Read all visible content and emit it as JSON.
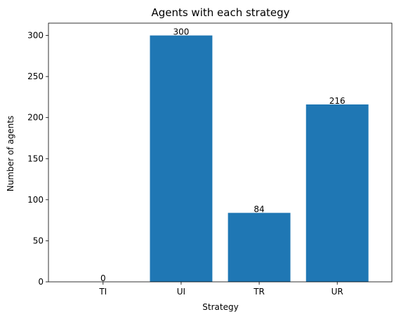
{
  "chart_data": {
    "type": "bar",
    "title": "Agents with each strategy",
    "xlabel": "Strategy",
    "ylabel": "Number of agents",
    "categories": [
      "TI",
      "UI",
      "TR",
      "UR"
    ],
    "values": [
      0,
      300,
      84,
      216
    ],
    "ylim": [
      0,
      315
    ],
    "yticks": [
      0,
      50,
      100,
      150,
      200,
      250,
      300
    ],
    "grid": false,
    "bar_color": "#1f77b4"
  }
}
